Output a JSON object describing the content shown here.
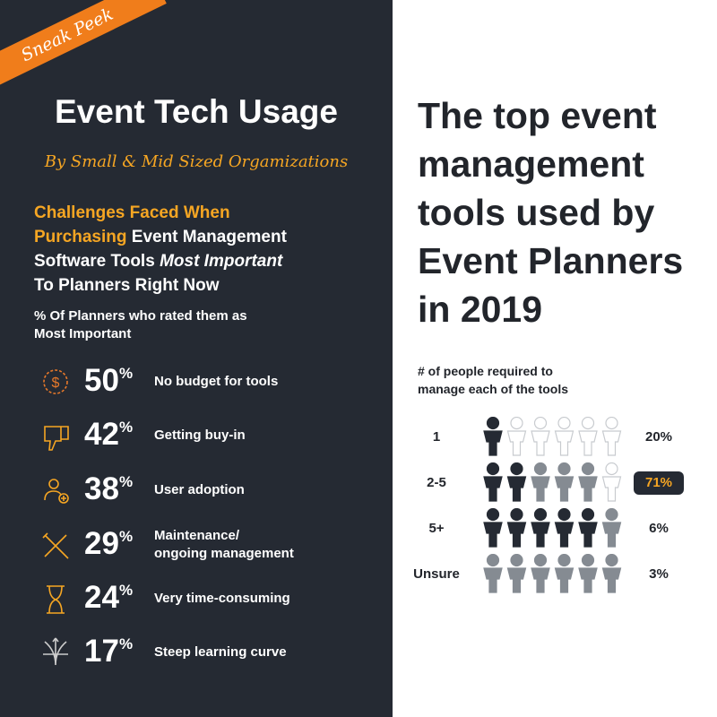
{
  "badge": "Sneak Peek",
  "left": {
    "title": "Event Tech Usage",
    "subtitle": "By Small & Mid Sized Orgamizations",
    "heading": [
      "Challenges Faced When",
      "Purchasing",
      "Event Management",
      "Software Tools",
      "Most Important",
      "To Planners Right Now"
    ],
    "note": [
      "% Of Planners who rated them as",
      "Most Important"
    ],
    "items": [
      {
        "value": "50",
        "sup": "%",
        "label": [
          "No budget for tools"
        ]
      },
      {
        "value": "42",
        "sup": "%",
        "label": [
          "Getting buy-in"
        ]
      },
      {
        "value": "38",
        "sup": "%",
        "label": [
          "User adoption"
        ]
      },
      {
        "value": "29",
        "sup": "%",
        "label": [
          "Maintenance/",
          "ongoing management"
        ]
      },
      {
        "value": "24",
        "sup": "%",
        "label": [
          "Very time-consuming"
        ]
      },
      {
        "value": "17",
        "sup": "%",
        "label": [
          "Steep learning curve"
        ]
      }
    ]
  },
  "right": {
    "title": [
      "The top event",
      "management",
      "tools used by",
      "Event Planners",
      "in 2019"
    ],
    "subtitle": [
      "# of people required to",
      "manage each of the tools"
    ],
    "rows": [
      {
        "label": "1",
        "percent": "20%",
        "icons": [
          "#252a33",
          "none",
          "none",
          "none",
          "none",
          "none"
        ],
        "highlight": false
      },
      {
        "label": "2-5",
        "percent": "71%",
        "icons": [
          "#252a33",
          "#252a33",
          "#858b92",
          "#858b92",
          "#858b92",
          "none"
        ],
        "highlight": true
      },
      {
        "label": "5+",
        "percent": "6%",
        "icons": [
          "#252a33",
          "#252a33",
          "#252a33",
          "#252a33",
          "#252a33",
          "#858b92"
        ],
        "highlight": false
      },
      {
        "label": "Unsure",
        "percent": "3%",
        "icons": [
          "#858b92",
          "#858b92",
          "#858b92",
          "#858b92",
          "#858b92",
          "#858b92"
        ],
        "highlight": false
      }
    ]
  }
}
